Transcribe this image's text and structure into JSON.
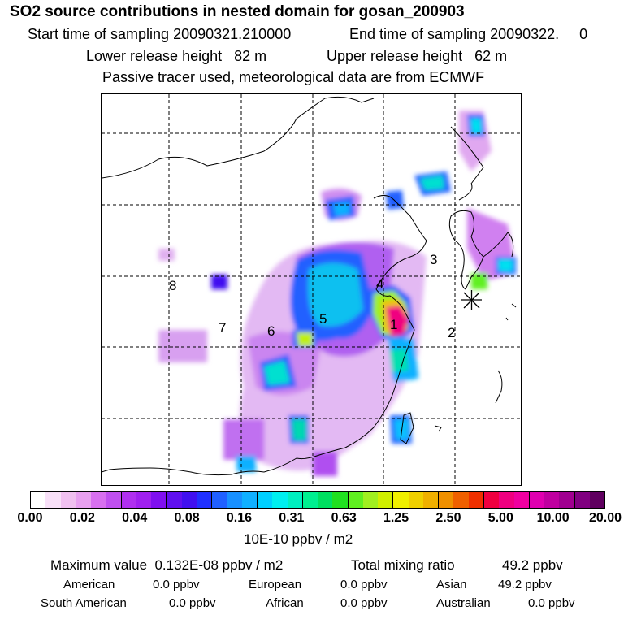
{
  "header": {
    "title": "SO2 source contributions in nested domain for gosan_200903",
    "start_label": "Start time of sampling 20090321.210000",
    "end_label": "End time of sampling 20090322.     0",
    "lower_label": "Lower release height   82 m",
    "upper_label": "Upper release height   62 m",
    "note": "Passive tracer used, meteorological data are from ECMWF"
  },
  "map": {
    "regions": [
      "1",
      "2",
      "3",
      "4",
      "5",
      "6",
      "7",
      "8"
    ],
    "colors": {
      "land_line": "#000000",
      "grid": "#000000",
      "receptor": "#000000"
    }
  },
  "colorbar": {
    "ticks": [
      "0.00",
      "0.02",
      "0.04",
      "0.08",
      "0.16",
      "0.31",
      "0.63",
      "1.25",
      "2.50",
      "5.00",
      "10.00",
      "20.00"
    ],
    "unit": "10E-10 ppbv / m2",
    "colors": [
      "#ffffff",
      "#f8e0f8",
      "#f0c0f0",
      "#e8a0f0",
      "#d870f0",
      "#c050f0",
      "#b030f0",
      "#a020f0",
      "#8010f0",
      "#6010f0",
      "#4010f0",
      "#2030ff",
      "#2060ff",
      "#1890ff",
      "#10b0ff",
      "#00d0ff",
      "#00f0f0",
      "#00f0c0",
      "#00f090",
      "#00e060",
      "#20e020",
      "#60f020",
      "#a0f020",
      "#d0f000",
      "#f0f000",
      "#f0d000",
      "#f0b000",
      "#f09000",
      "#f06000",
      "#f03000",
      "#f00040",
      "#f00080",
      "#f000a0",
      "#e000b0",
      "#c000a0",
      "#a00090",
      "#800080",
      "#600060"
    ]
  },
  "summary": {
    "max_label": "Maximum value  0.132E-08 ppbv / m2",
    "total_label": "Total mixing ratio",
    "total_value": "49.2 ppbv",
    "rows": [
      [
        {
          "name": "American",
          "value": "0.0 ppbv"
        },
        {
          "name": "European",
          "value": "0.0 ppbv"
        },
        {
          "name": "Asian",
          "value": "49.2 ppbv"
        }
      ],
      [
        {
          "name": "South American",
          "value": "0.0 ppbv"
        },
        {
          "name": "African",
          "value": "0.0 ppbv"
        },
        {
          "name": "Australian",
          "value": "0.0 ppbv"
        }
      ]
    ]
  }
}
